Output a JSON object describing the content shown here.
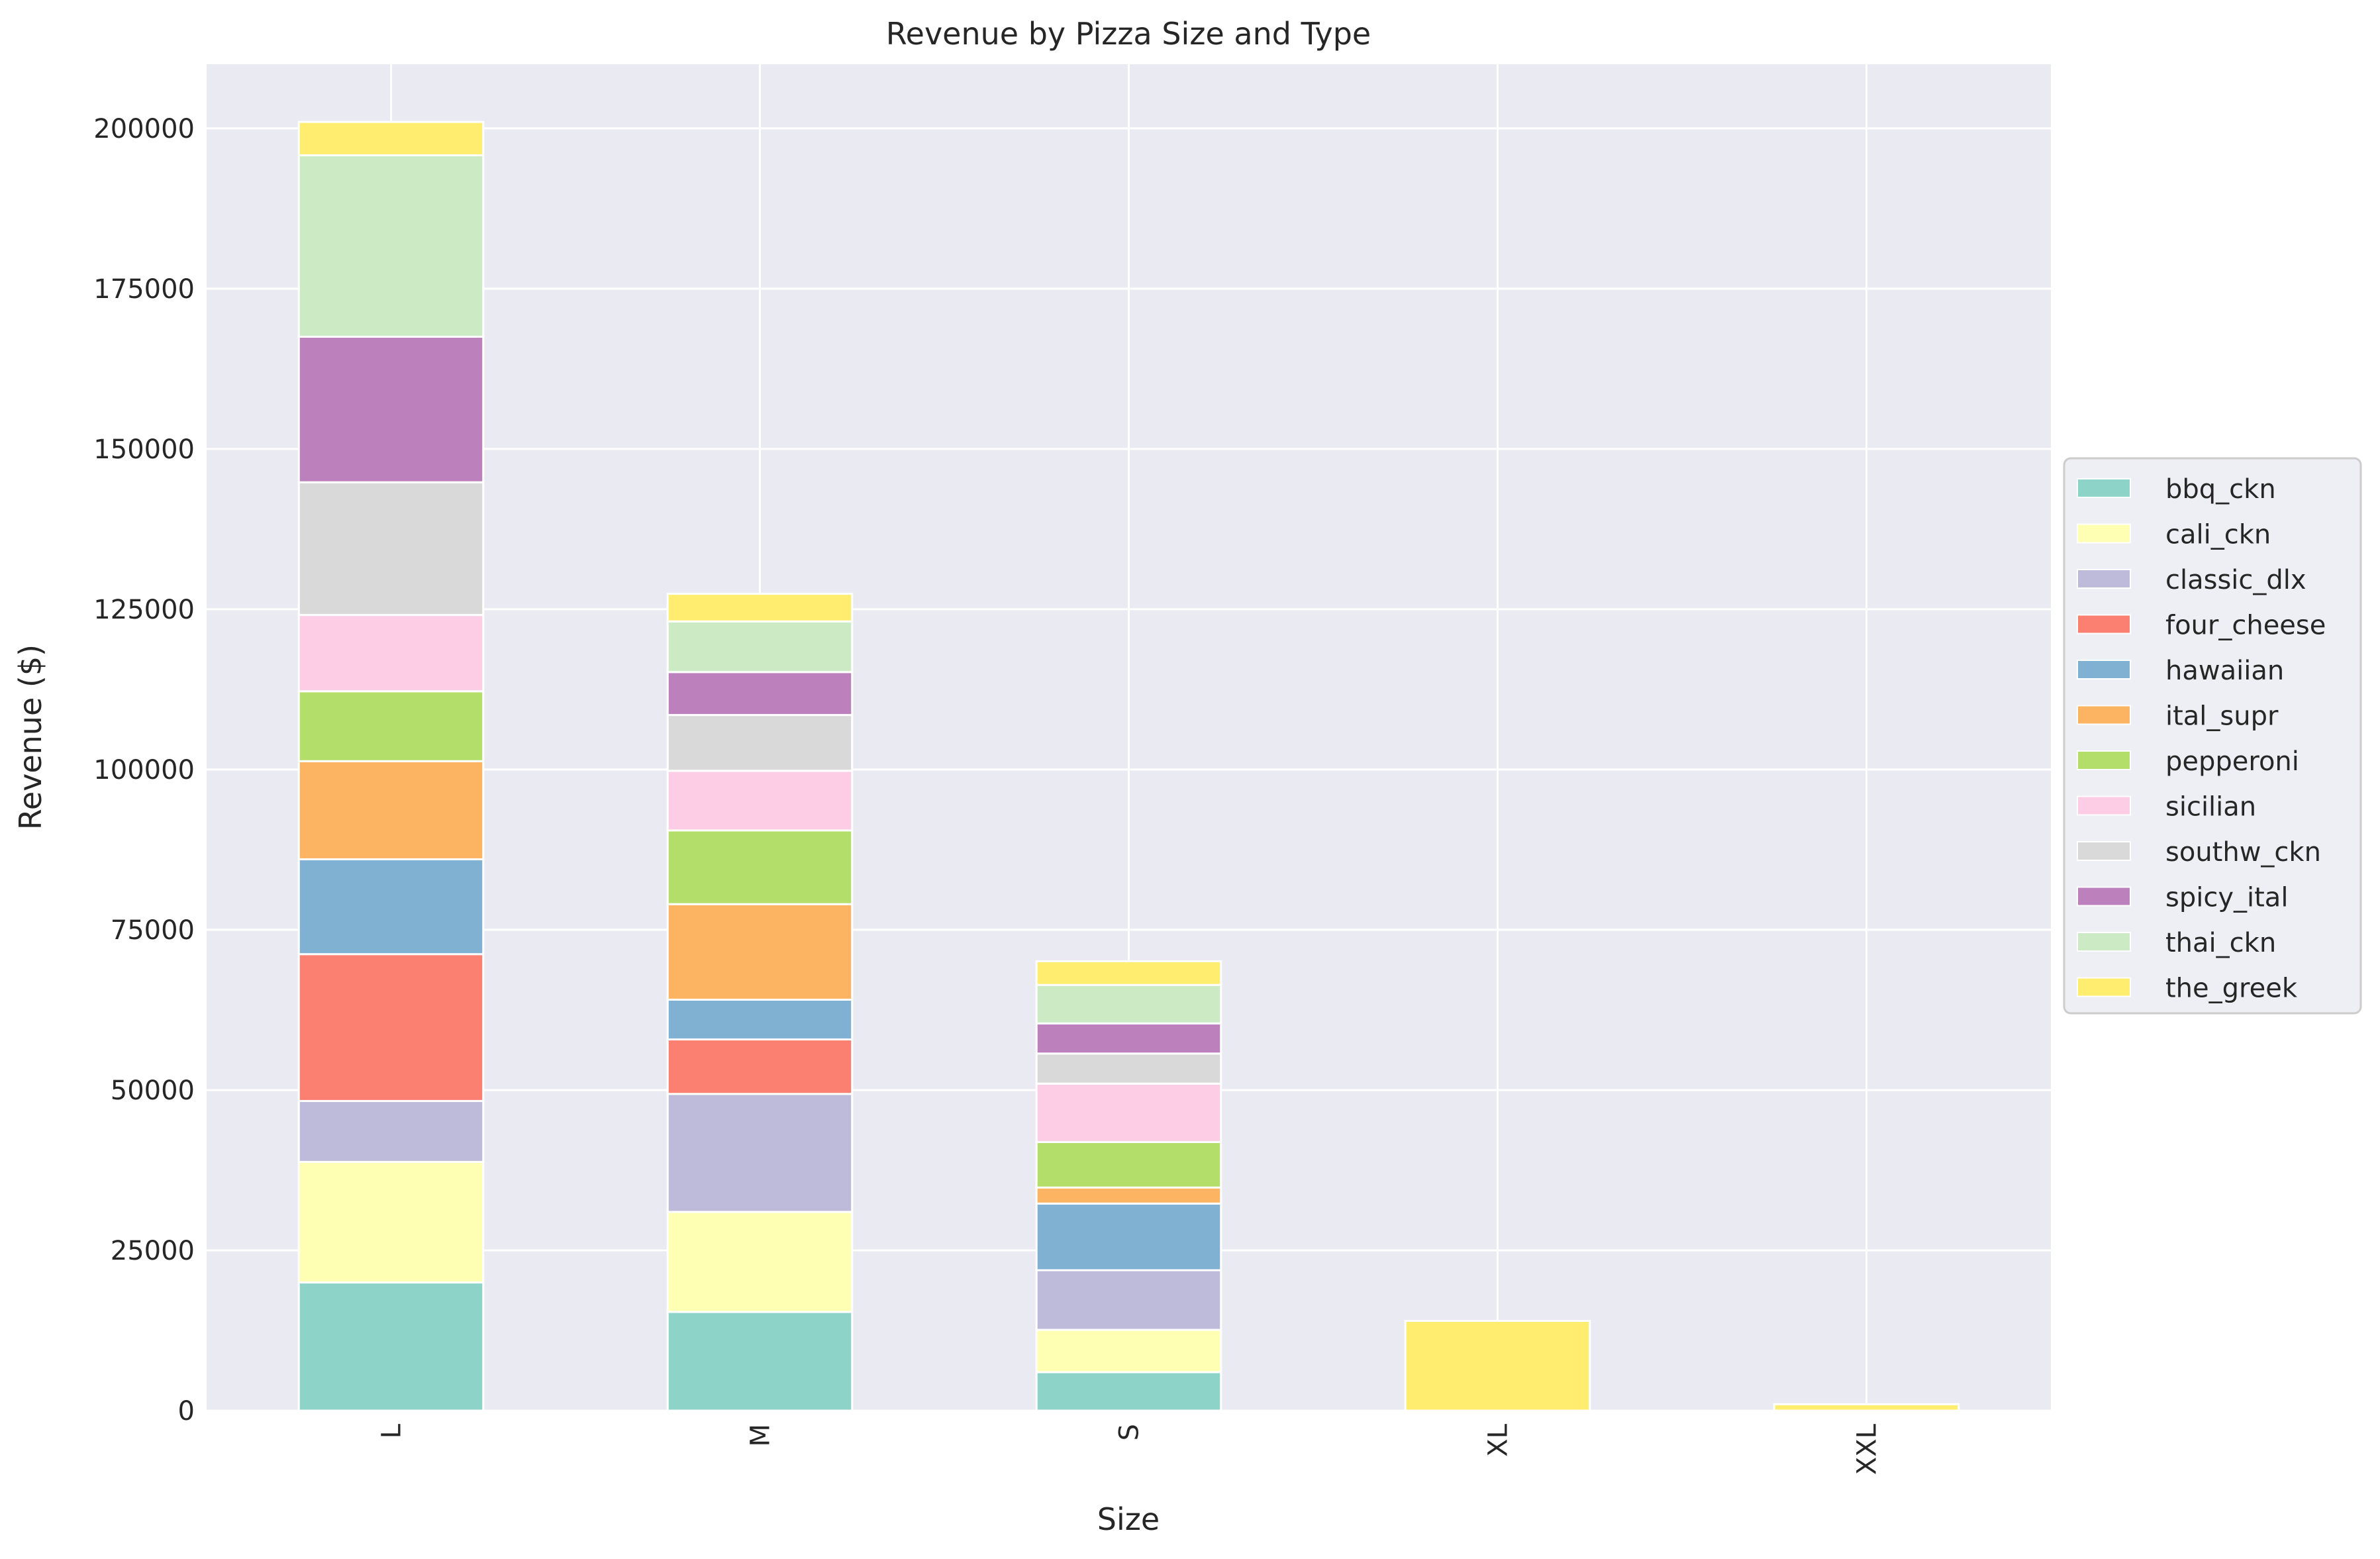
{
  "chart_data": {
    "type": "bar",
    "stacked": true,
    "title": "Revenue by Pizza Size and Type",
    "xlabel": "Size",
    "ylabel": "Revenue ($)",
    "categories": [
      "L",
      "M",
      "S",
      "XL",
      "XXL"
    ],
    "ylim": [
      0,
      210000
    ],
    "yticks": [
      0,
      25000,
      50000,
      75000,
      100000,
      125000,
      150000,
      175000,
      200000
    ],
    "grid": true,
    "legend_position": "right",
    "series": [
      {
        "name": "bbq_ckn",
        "color": "#8dd3c7",
        "values": [
          20000,
          15400,
          6000,
          0,
          0
        ]
      },
      {
        "name": "cali_ckn",
        "color": "#ffffb3",
        "values": [
          18800,
          15600,
          6600,
          0,
          0
        ]
      },
      {
        "name": "classic_dlx",
        "color": "#bebada",
        "values": [
          9500,
          18400,
          9300,
          0,
          0
        ]
      },
      {
        "name": "four_cheese",
        "color": "#fb8072",
        "values": [
          22900,
          8500,
          0,
          0,
          0
        ]
      },
      {
        "name": "hawaiian",
        "color": "#80b1d3",
        "values": [
          14800,
          6200,
          10400,
          0,
          0
        ]
      },
      {
        "name": "ital_supr",
        "color": "#fdb462",
        "values": [
          15300,
          14900,
          2500,
          0,
          0
        ]
      },
      {
        "name": "pepperoni",
        "color": "#b3de69",
        "values": [
          10900,
          11500,
          7100,
          0,
          0
        ]
      },
      {
        "name": "sicilian",
        "color": "#fccde5",
        "values": [
          11900,
          9300,
          9100,
          0,
          0
        ]
      },
      {
        "name": "southw_ckn",
        "color": "#d9d9d9",
        "values": [
          20700,
          8700,
          4700,
          0,
          0
        ]
      },
      {
        "name": "spicy_ital",
        "color": "#bc80bd",
        "values": [
          22700,
          6700,
          4700,
          0,
          0
        ]
      },
      {
        "name": "thai_ckn",
        "color": "#ccebc5",
        "values": [
          28300,
          7900,
          6000,
          0,
          0
        ]
      },
      {
        "name": "the_greek",
        "color": "#ffed6f",
        "values": [
          5200,
          4300,
          3700,
          14000,
          1000
        ]
      }
    ]
  },
  "style": {
    "plot_background": "#eaeaf2",
    "grid_color": "#ffffff",
    "bar_edge_color": "#ffffff"
  }
}
